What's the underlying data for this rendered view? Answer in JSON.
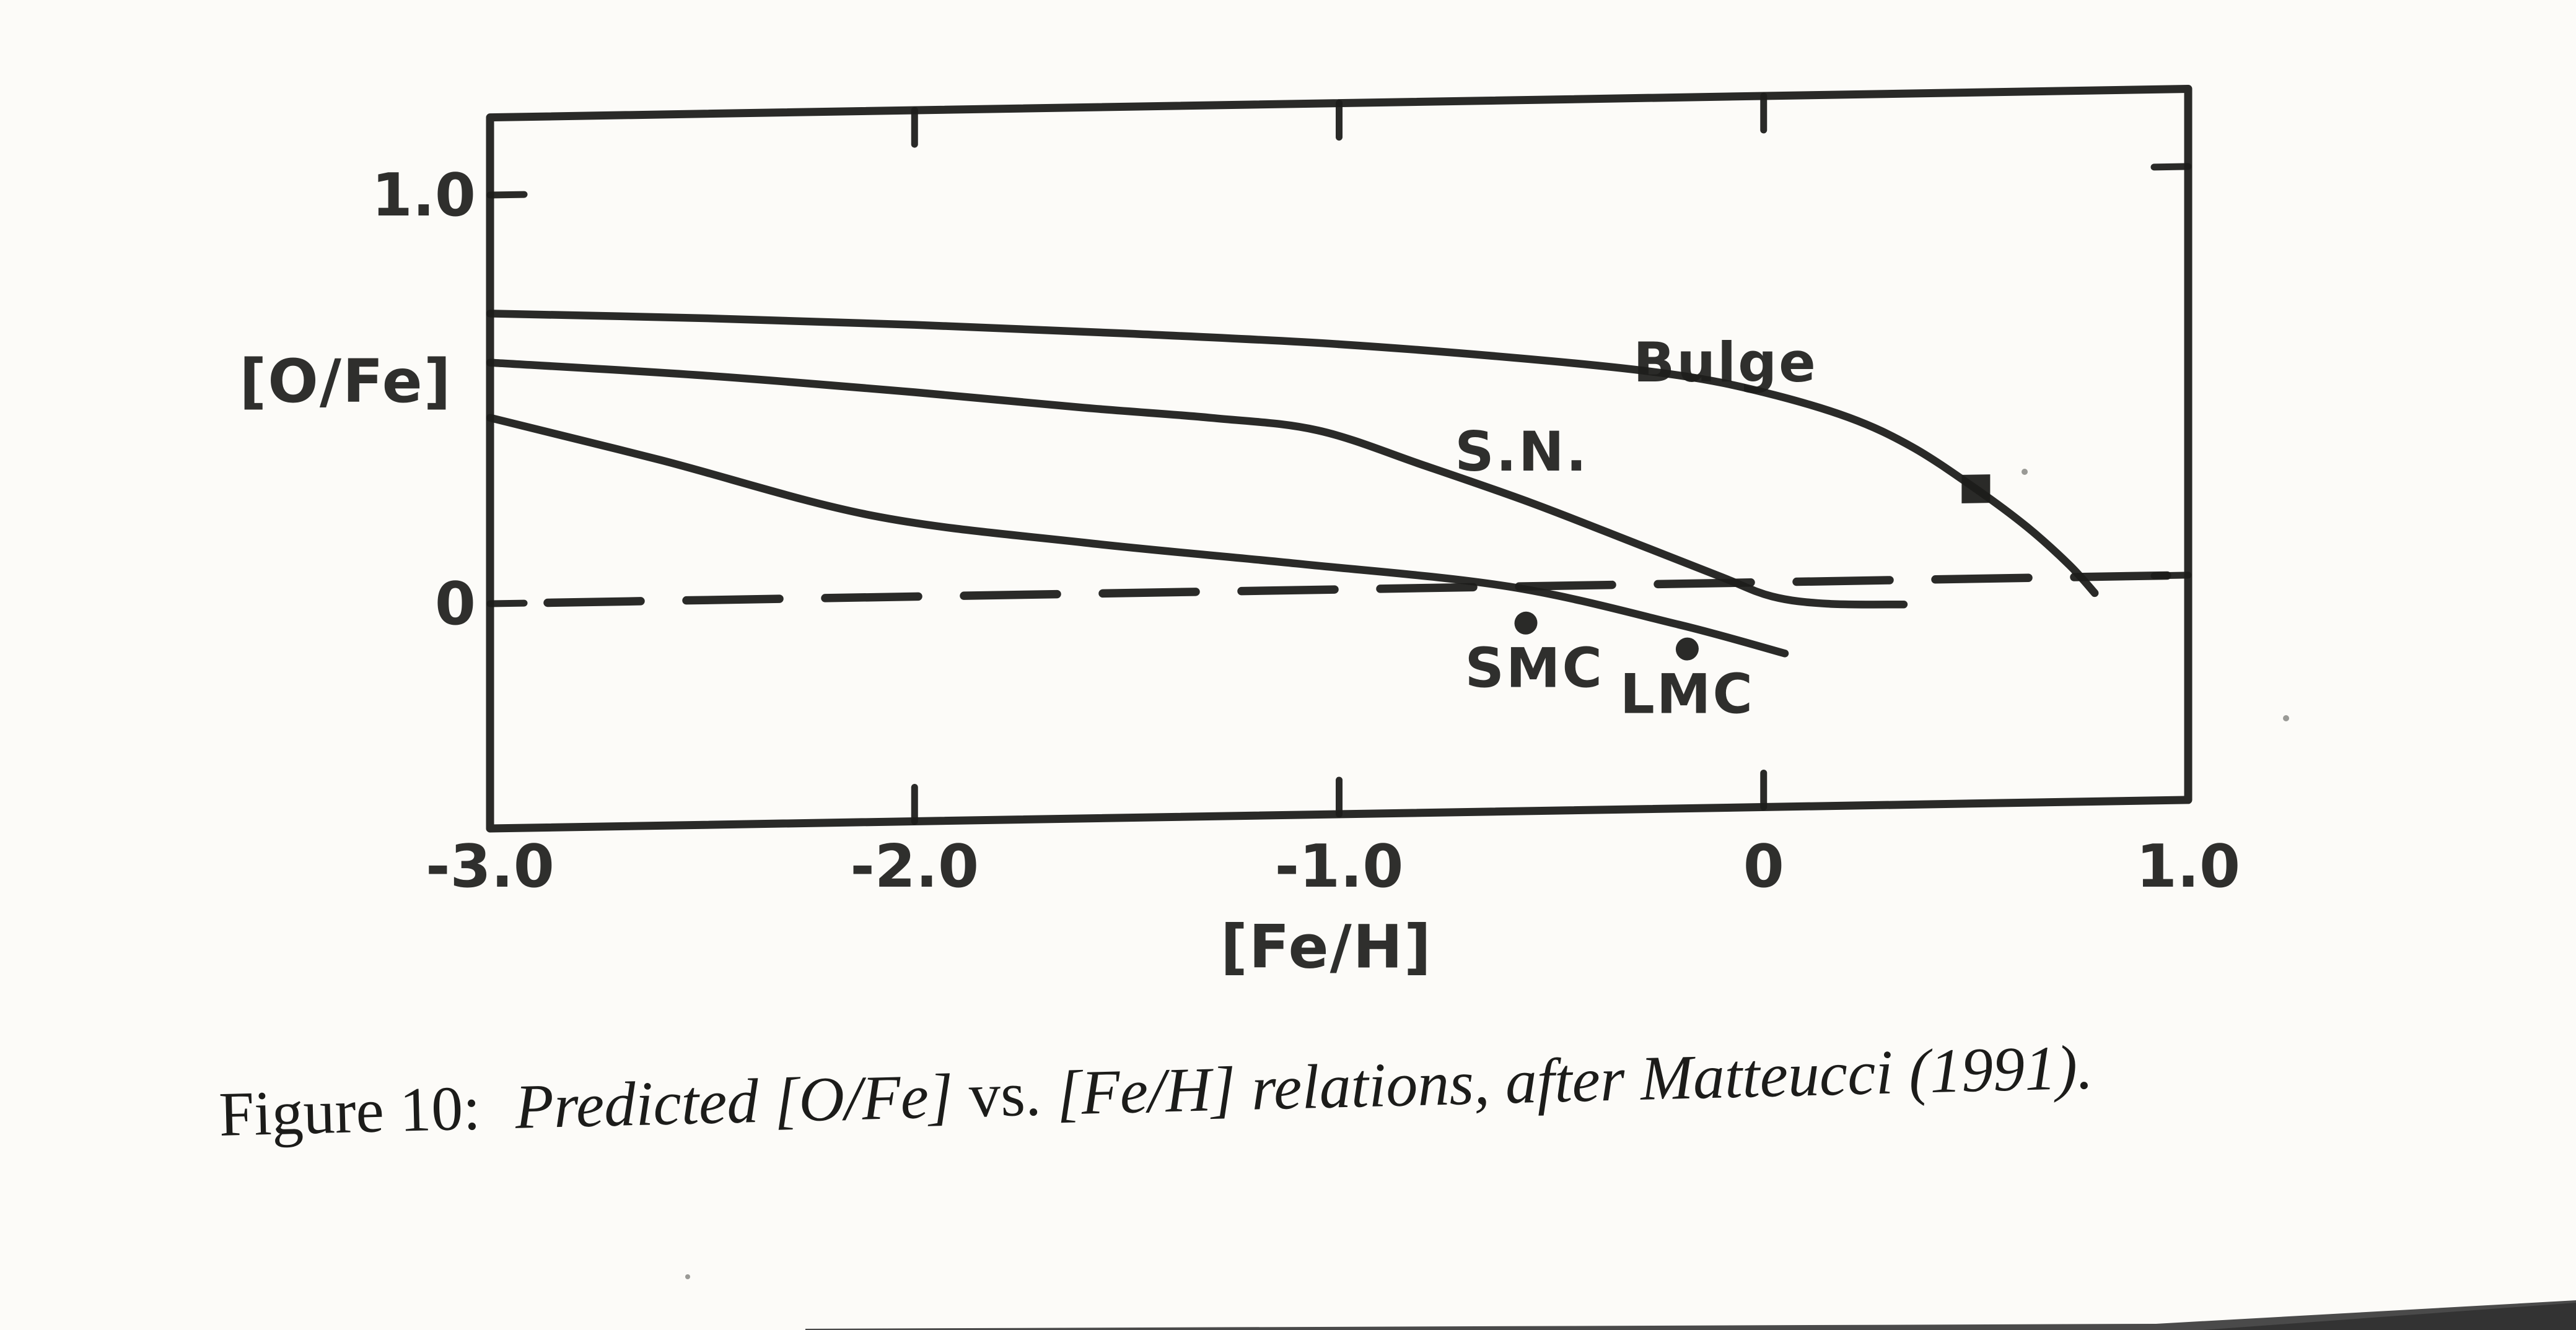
{
  "page": {
    "paper_color": "#fcfbf8",
    "ink_color": "#1d1d1b",
    "scan_artifact_color": "#3f3f3f"
  },
  "caption": {
    "label": "Figure 10:",
    "emph1": "Predicted [O/Fe]",
    "roman_vs": "vs.",
    "emph2": "[Fe/H] relations, after Matteucci (1991)."
  },
  "chart_data": {
    "type": "line",
    "title": "",
    "xlabel": "[Fe/H]",
    "ylabel": "[O/Fe]",
    "xlim": [
      -3.0,
      1.0
    ],
    "ylim": [
      -0.55,
      1.19
    ],
    "grid": false,
    "legend": "none (curves labeled inline)",
    "zero_line": {
      "y": 0.0,
      "style": "dashed"
    },
    "x_ticks": [
      {
        "v": -3.0,
        "label": "-3.0",
        "mark": false
      },
      {
        "v": -2.0,
        "label": "-2.0",
        "mark": true
      },
      {
        "v": -1.0,
        "label": "-1.0",
        "mark": true
      },
      {
        "v": 0.0,
        "label": "0",
        "mark": true
      },
      {
        "v": 1.0,
        "label": "1.0",
        "mark": false
      }
    ],
    "y_ticks": [
      {
        "v": 1.0,
        "label": "1.0"
      },
      {
        "v": 0.0,
        "label": "0"
      }
    ],
    "series": [
      {
        "name": "Bulge",
        "points": [
          [
            -3.0,
            0.71
          ],
          [
            -2.5,
            0.69
          ],
          [
            -2.0,
            0.665
          ],
          [
            -1.5,
            0.635
          ],
          [
            -1.0,
            0.6
          ],
          [
            -0.5,
            0.55
          ],
          [
            -0.2,
            0.51
          ],
          [
            0.0,
            0.465
          ],
          [
            0.2,
            0.4
          ],
          [
            0.35,
            0.325
          ],
          [
            0.5,
            0.22
          ],
          [
            0.62,
            0.125
          ],
          [
            0.72,
            0.03
          ],
          [
            0.78,
            -0.04
          ]
        ]
      },
      {
        "name": "S.N.",
        "points": [
          [
            -3.0,
            0.59
          ],
          [
            -2.5,
            0.55
          ],
          [
            -2.0,
            0.5
          ],
          [
            -1.6,
            0.455
          ],
          [
            -1.3,
            0.425
          ],
          [
            -1.05,
            0.39
          ],
          [
            -0.8,
            0.3
          ],
          [
            -0.55,
            0.205
          ],
          [
            -0.3,
            0.1
          ],
          [
            -0.1,
            0.015
          ],
          [
            0.02,
            -0.035
          ],
          [
            0.15,
            -0.055
          ],
          [
            0.33,
            -0.06
          ]
        ]
      },
      {
        "name": "unlabeled-lower-curve",
        "points": [
          [
            -3.0,
            0.455
          ],
          [
            -2.6,
            0.345
          ],
          [
            -2.1,
            0.2
          ],
          [
            -1.6,
            0.125
          ],
          [
            -1.1,
            0.065
          ],
          [
            -0.6,
            0.0
          ],
          [
            -0.2,
            -0.1
          ],
          [
            0.05,
            -0.175
          ]
        ]
      }
    ],
    "markers": [
      {
        "id": "smc-point",
        "symbol": "dot",
        "x": -0.56,
        "y": -0.09
      },
      {
        "id": "lmc-point",
        "symbol": "dot",
        "x": -0.18,
        "y": -0.16
      },
      {
        "id": "bulge-square",
        "symbol": "filled-square",
        "x": 0.5,
        "y": 0.22
      }
    ],
    "annotations": [
      {
        "text": "Bulge",
        "x": -0.09,
        "y": 0.54
      },
      {
        "text": "S.N.",
        "x": -0.57,
        "y": 0.33
      },
      {
        "text": "SMC",
        "x": -0.54,
        "y": -0.2
      },
      {
        "text": "LMC",
        "x": -0.18,
        "y": -0.27
      }
    ],
    "axis_titles": {
      "y": {
        "text": "[O/Fe]",
        "x": -3.34,
        "y": 0.55
      },
      "x": {
        "text": "[Fe/H]",
        "x": -1.03,
        "y": -0.87
      }
    }
  }
}
